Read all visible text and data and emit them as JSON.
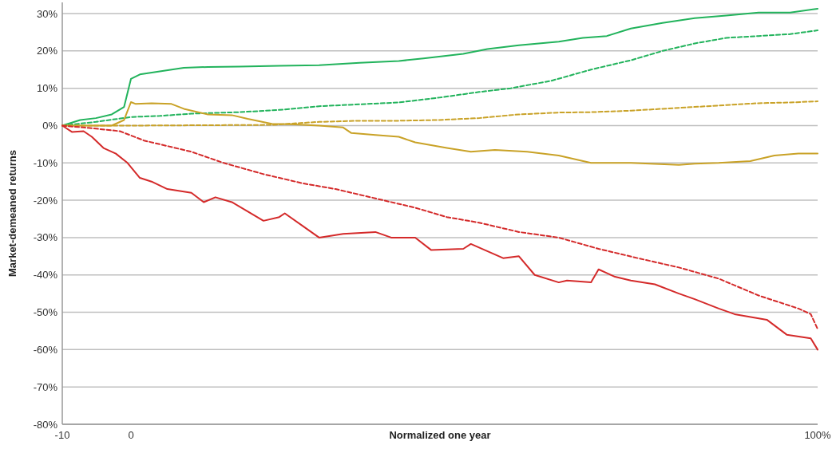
{
  "chart_data": {
    "type": "line",
    "xlabel": "Normalized one year",
    "ylabel": "Market-demeaned returns",
    "xlim": [
      -10,
      100
    ],
    "xticks": [
      -10,
      0,
      {
        "value": 100,
        "label": "100%"
      }
    ],
    "ylim": [
      -80,
      33
    ],
    "yticks": [
      {
        "value": 30,
        "label": "30%"
      },
      {
        "value": 20,
        "label": "20%"
      },
      {
        "value": 10,
        "label": "10%"
      },
      {
        "value": 0,
        "label": "0%"
      },
      {
        "value": -10,
        "label": "-10%"
      },
      {
        "value": -20,
        "label": "-20%"
      },
      {
        "value": -30,
        "label": "-30%"
      },
      {
        "value": -40,
        "label": "-40%"
      },
      {
        "value": -50,
        "label": "-50%"
      },
      {
        "value": -60,
        "label": "-60%"
      },
      {
        "value": -70,
        "label": "-70%"
      },
      {
        "value": -80,
        "label": "-80%"
      }
    ],
    "grid": "y",
    "series": [
      {
        "color": "#22b35c",
        "line_style": "solid",
        "x": [
          -10,
          -7.4,
          -5.1,
          -2.8,
          -1,
          0,
          1.3,
          4.2,
          7.7,
          11.2,
          15.8,
          21.6,
          27.4,
          33.3,
          39,
          42.6,
          48.4,
          51.9,
          56.5,
          62.3,
          65.8,
          69.3,
          72.8,
          77.4,
          82.1,
          86.7,
          91.4,
          96,
          100
        ],
        "values": [
          0,
          1.5,
          2,
          3,
          5,
          12.5,
          13.7,
          14.5,
          15.5,
          15.7,
          15.8,
          16,
          16.2,
          16.8,
          17.3,
          18,
          19.2,
          20.5,
          21.5,
          22.5,
          23.5,
          24,
          26,
          27.5,
          28.8,
          29.5,
          30.3,
          30.3,
          31.3
        ]
      },
      {
        "color": "#22b35c",
        "line_style": "dashed",
        "x": [
          -10,
          -5.1,
          0,
          4.2,
          8.8,
          15.8,
          21.6,
          27.4,
          33.3,
          39,
          44.9,
          50.7,
          55.3,
          61.2,
          67,
          72.8,
          77.4,
          82.1,
          86.7,
          91.4,
          96,
          100
        ],
        "values": [
          0,
          1,
          2.3,
          2.6,
          3.2,
          3.6,
          4.2,
          5.2,
          5.7,
          6.2,
          7.5,
          9,
          10,
          12,
          15,
          17.5,
          20,
          22,
          23.5,
          24,
          24.5,
          25.5
        ]
      },
      {
        "color": "#c9a227",
        "line_style": "solid",
        "x": [
          -10,
          -2.8,
          -1,
          0,
          0.7,
          3,
          5.9,
          7.7,
          11.2,
          14.7,
          17,
          20.5,
          23.9,
          27.4,
          30.9,
          32.1,
          35.6,
          39,
          41.4,
          46,
          49.5,
          53,
          57.7,
          62.3,
          67,
          72.8,
          79.8,
          82.1,
          85.6,
          90.2,
          93.7,
          97.2,
          100
        ],
        "values": [
          0,
          0,
          1.5,
          6.3,
          5.8,
          6,
          5.8,
          4.5,
          3,
          2.8,
          1.8,
          0.5,
          0.3,
          0,
          -0.5,
          -2,
          -2.5,
          -3,
          -4.5,
          -6,
          -7,
          -6.5,
          -7,
          -8,
          -10,
          -10,
          -10.5,
          -10.2,
          -10,
          -9.5,
          -8,
          -7.5,
          -7.5
        ]
      },
      {
        "color": "#c9a227",
        "line_style": "dashed",
        "x": [
          -10,
          0,
          20.5,
          27.4,
          33.3,
          39,
          44.9,
          50.7,
          56.5,
          62.3,
          67,
          72.8,
          77.4,
          82.1,
          86.7,
          91.4,
          96,
          100
        ],
        "values": [
          0,
          0,
          0.2,
          1,
          1.3,
          1.3,
          1.5,
          2,
          3,
          3.5,
          3.6,
          4,
          4.5,
          5,
          5.5,
          6,
          6.2,
          6.5
        ]
      },
      {
        "color": "#d42a2a",
        "line_style": "solid",
        "x": [
          -10,
          -8.6,
          -6.9,
          -5.7,
          -4,
          -2.2,
          -0.5,
          1.3,
          3,
          5.3,
          8.8,
          10.6,
          12.3,
          14.7,
          17,
          19.3,
          21.6,
          22.4,
          25.1,
          27.4,
          30.9,
          35.6,
          37.9,
          41.4,
          43.7,
          48.4,
          49.5,
          54.2,
          56.5,
          58.8,
          62.3,
          63.5,
          67,
          68.1,
          70.5,
          72.8,
          76.3,
          79.8,
          82.1,
          85.6,
          87.9,
          92.6,
          95.5,
          99,
          100
        ],
        "values": [
          0,
          -1.7,
          -1.5,
          -3,
          -6,
          -7.5,
          -10,
          -14,
          -15,
          -17,
          -18,
          -20.5,
          -19.2,
          -20.5,
          -23,
          -25.5,
          -24.5,
          -23.5,
          -27,
          -30,
          -29,
          -28.5,
          -30,
          -30,
          -33.3,
          -33,
          -31.7,
          -35.5,
          -35,
          -40,
          -42,
          -41.5,
          -42,
          -38.5,
          -40.5,
          -41.5,
          -42.5,
          -45,
          -46.5,
          -49,
          -50.5,
          -52,
          -56,
          -57,
          -60
        ]
      },
      {
        "color": "#d42a2a",
        "line_style": "dashed",
        "x": [
          -10,
          -5.7,
          -1.6,
          1.9,
          4.2,
          8.8,
          13.5,
          19.3,
          25.1,
          29.8,
          35.6,
          41.4,
          46,
          50.7,
          56.5,
          62.3,
          68.1,
          73.8,
          79.8,
          85.6,
          91.4,
          97.2,
          99,
          100
        ],
        "values": [
          0,
          -0.7,
          -1.5,
          -4,
          -5,
          -7,
          -10,
          -13,
          -15.5,
          -17,
          -19.5,
          -22,
          -24.5,
          -26,
          -28.5,
          -30,
          -33,
          -35.5,
          -38,
          -41,
          -45.5,
          -49,
          -50.5,
          -54.5
        ]
      }
    ]
  }
}
